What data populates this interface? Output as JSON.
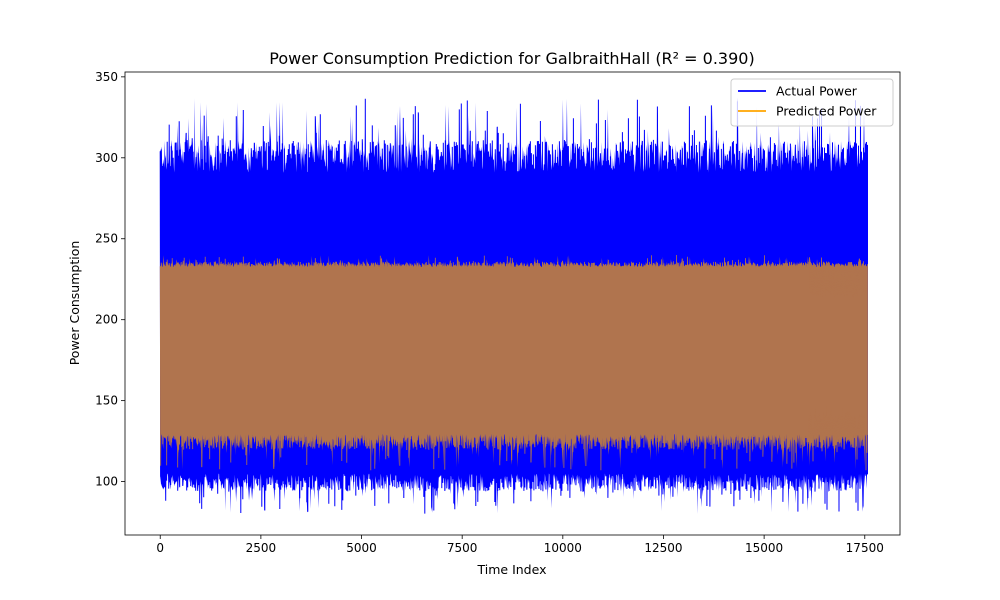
{
  "chart_data": {
    "type": "line",
    "title": "Power Consumption Prediction for GalbraithHall (R² = 0.390)",
    "xlabel": "Time Index",
    "ylabel": "Power Consumption",
    "xlim": [
      -875,
      18375
    ],
    "ylim": [
      67,
      353
    ],
    "x_ticks": [
      0,
      2500,
      5000,
      7500,
      10000,
      12500,
      15000,
      17500
    ],
    "y_ticks": [
      100,
      150,
      200,
      250,
      300,
      350
    ],
    "x_range": [
      0,
      17567
    ],
    "grid": false,
    "legend_position": "top-right",
    "series": [
      {
        "name": "Actual Power",
        "color": "#0000ff",
        "band": {
          "low_typical": 100,
          "high_typical": 300,
          "min": 80,
          "max": 337
        }
      },
      {
        "name": "Predicted Power",
        "color": "#ffa500",
        "band": {
          "low_typical": 125,
          "high_typical": 234,
          "min": 107,
          "max": 240
        }
      }
    ]
  }
}
